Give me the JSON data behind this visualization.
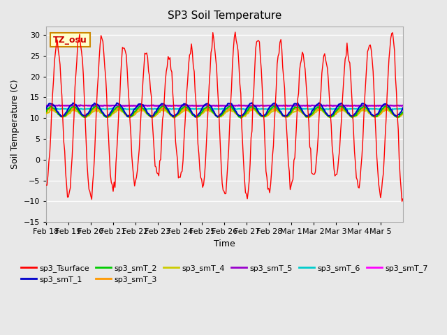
{
  "title": "SP3 Soil Temperature",
  "ylabel": "Soil Temperature (C)",
  "xlabel": "Time",
  "annotation": "TZ_osu",
  "ylim": [
    -15,
    32
  ],
  "yticks": [
    -15,
    -10,
    -5,
    0,
    5,
    10,
    15,
    20,
    25,
    30
  ],
  "date_labels": [
    "Feb 18",
    "Feb 19",
    "Feb 20",
    "Feb 21",
    "Feb 22",
    "Feb 23",
    "Feb 24",
    "Feb 25",
    "Feb 26",
    "Feb 27",
    "Feb 28",
    "Mar 1",
    "Mar 2",
    "Mar 3",
    "Mar 4",
    "Mar 5"
  ],
  "tick_positions": [
    0,
    1,
    2,
    3,
    4,
    5,
    6,
    7,
    8,
    9,
    10,
    11,
    12,
    13,
    14,
    15
  ],
  "series_colors": {
    "sp3_Tsurface": "#ff0000",
    "sp3_smT_1": "#0000cc",
    "sp3_smT_2": "#00cc00",
    "sp3_smT_3": "#ff9900",
    "sp3_smT_4": "#cccc00",
    "sp3_smT_5": "#9900cc",
    "sp3_smT_6": "#00cccc",
    "sp3_smT_7": "#ff00ff"
  },
  "background_color": "#e8e8e8",
  "plot_bg_color": "#e8e8e8",
  "grid_color": "#ffffff",
  "smT_1_mean": 12.0,
  "smT_2_mean": 11.5,
  "smT_3_mean": 11.3,
  "smT_4_mean": 11.1,
  "smT_5_mean": 13.0,
  "smT_6_mean": 12.2,
  "smT_7_mean": 13.0
}
